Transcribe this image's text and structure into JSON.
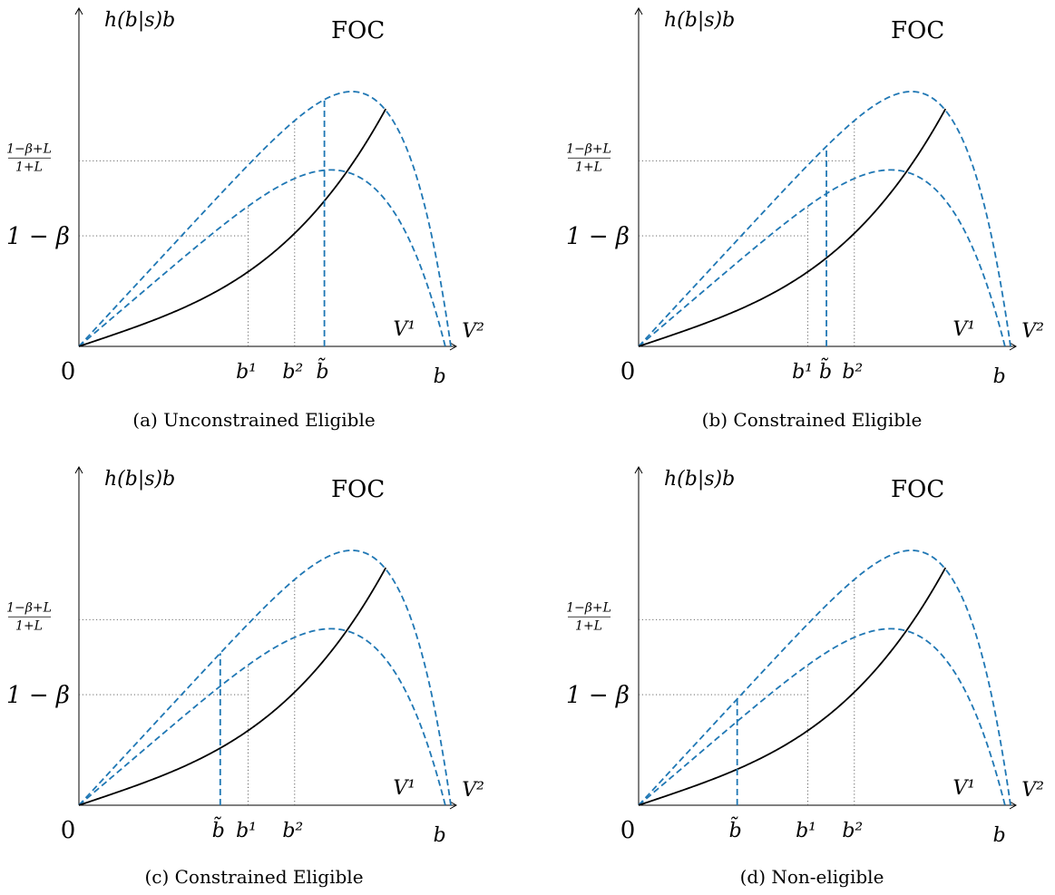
{
  "figure": {
    "accent_color": "#1f77b4",
    "curve_color": "#000000",
    "panels": [
      {
        "caption": "(a) Unconstrained Eligible",
        "chart_data": {
          "type": "line",
          "ylabel": "h(b|s)b",
          "xlabel": "b",
          "curve_label": "FOC",
          "y_tick_labels": [
            "1−β+L",
            "1+L",
            "1 − β"
          ],
          "x_tick_labels": [
            "0",
            "b¹",
            "b²",
            "b̃"
          ],
          "series_labels": [
            "V¹",
            "V²"
          ],
          "btilde_index": 2,
          "btilde": 0.66,
          "b1": 0.455,
          "b2": 0.58
        }
      },
      {
        "caption": "(b) Constrained Eligible",
        "chart_data": {
          "type": "line",
          "ylabel": "h(b|s)b",
          "xlabel": "b",
          "curve_label": "FOC",
          "y_tick_labels": [
            "1−β+L",
            "1+L",
            "1 − β"
          ],
          "x_tick_labels": [
            "0",
            "b¹",
            "b̃",
            "b²"
          ],
          "series_labels": [
            "V¹",
            "V²"
          ],
          "btilde_index": 1,
          "btilde": 0.505,
          "b1": 0.455,
          "b2": 0.58
        }
      },
      {
        "caption": "(c) Constrained Eligible",
        "chart_data": {
          "type": "line",
          "ylabel": "h(b|s)b",
          "xlabel": "b",
          "curve_label": "FOC",
          "y_tick_labels": [
            "1−β+L",
            "1+L",
            "1 − β"
          ],
          "x_tick_labels": [
            "0",
            "b̃",
            "b¹",
            "b²"
          ],
          "series_labels": [
            "V¹",
            "V²"
          ],
          "btilde_index": 0,
          "btilde": 0.38,
          "b1": 0.455,
          "b2": 0.58
        }
      },
      {
        "caption": "(d) Non-eligible",
        "chart_data": {
          "type": "line",
          "ylabel": "h(b|s)b",
          "xlabel": "b",
          "curve_label": "FOC",
          "y_tick_labels": [
            "1−β+L",
            "1+L",
            "1 − β"
          ],
          "x_tick_labels": [
            "0",
            "b̃",
            "b¹",
            "b²"
          ],
          "series_labels": [
            "V¹",
            "V²"
          ],
          "btilde_index": 0,
          "btilde": 0.265,
          "b1": 0.455,
          "b2": 0.58
        }
      }
    ]
  }
}
